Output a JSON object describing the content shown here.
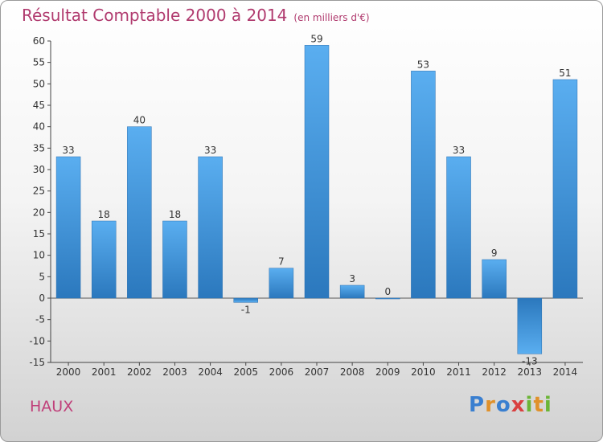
{
  "title": "Résultat Comptable 2000 à 2014",
  "subtitle": "(en milliers d'€)",
  "commune": "HAUX",
  "logo": {
    "letters": [
      "P",
      "r",
      "o",
      "x",
      "i",
      "t",
      "i"
    ],
    "colors": [
      "#3a7fd0",
      "#e0912a",
      "#3a7fd0",
      "#d94040",
      "#6bb536",
      "#e0912a",
      "#6bb536"
    ]
  },
  "chart_data": {
    "type": "bar",
    "categories": [
      "2000",
      "2001",
      "2002",
      "2003",
      "2004",
      "2005",
      "2006",
      "2007",
      "2008",
      "2009",
      "2010",
      "2011",
      "2012",
      "2013",
      "2014"
    ],
    "values": [
      33,
      18,
      40,
      18,
      33,
      -1,
      7,
      59,
      3,
      0,
      53,
      33,
      9,
      -13,
      51
    ],
    "data_labels": [
      "33",
      "18",
      "40",
      "18",
      "33",
      "-1",
      "7",
      "59",
      "3",
      "0",
      "53",
      "33",
      "9",
      "-13",
      "51"
    ],
    "ylim": [
      -15,
      60
    ],
    "yticks": [
      -15,
      -10,
      -5,
      0,
      5,
      10,
      15,
      20,
      25,
      30,
      35,
      40,
      45,
      50,
      55,
      60
    ],
    "grid": false,
    "bar_color": "#4a9ee0"
  }
}
